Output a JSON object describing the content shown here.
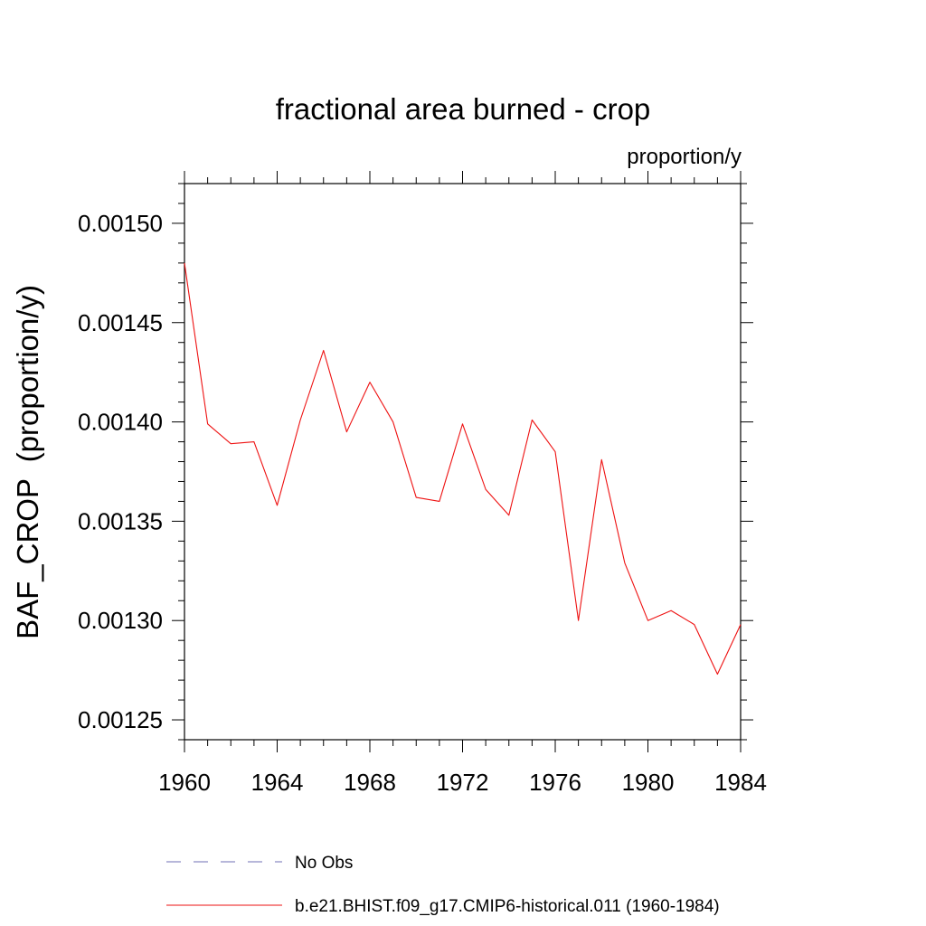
{
  "chart_data": {
    "type": "line",
    "title": "fractional area burned - crop",
    "units_label": "proportion/y",
    "ylabel": "BAF_CROP  (proportion/y)",
    "xlabel": "",
    "xlim": [
      1960,
      1984
    ],
    "ylim": [
      0.00124,
      0.00152
    ],
    "x_ticks": [
      1960,
      1964,
      1968,
      1972,
      1976,
      1980,
      1984
    ],
    "x_tick_labels": [
      "1960",
      "1964",
      "1968",
      "1972",
      "1976",
      "1980",
      "1984"
    ],
    "y_ticks": [
      0.00125,
      0.0013,
      0.00135,
      0.0014,
      0.00145,
      0.0015
    ],
    "y_tick_labels": [
      "0.00125",
      "0.00130",
      "0.00135",
      "0.00140",
      "0.00145",
      "0.00150"
    ],
    "x_minor_step": 1,
    "y_minor_step": 1e-05,
    "grid": false,
    "legend_position": "bottom",
    "series": [
      {
        "name": "No Obs",
        "color": "#6f6fb4",
        "dash": "dashed",
        "x": [],
        "y": []
      },
      {
        "name": "b.e21.BHIST.f09_g17.CMIP6-historical.011 (1960-1984)",
        "color": "#ee1111",
        "dash": "solid",
        "x": [
          1960,
          1961,
          1962,
          1963,
          1964,
          1965,
          1966,
          1967,
          1968,
          1969,
          1970,
          1971,
          1972,
          1973,
          1974,
          1975,
          1976,
          1977,
          1978,
          1979,
          1980,
          1981,
          1982,
          1983,
          1984
        ],
        "y": [
          0.00148,
          0.001399,
          0.001389,
          0.00139,
          0.001358,
          0.001401,
          0.001436,
          0.001395,
          0.00142,
          0.0014,
          0.001362,
          0.00136,
          0.001399,
          0.001366,
          0.001353,
          0.001401,
          0.001385,
          0.0013,
          0.001381,
          0.001329,
          0.0013,
          0.001305,
          0.001298,
          0.001273,
          0.001298
        ]
      }
    ]
  }
}
